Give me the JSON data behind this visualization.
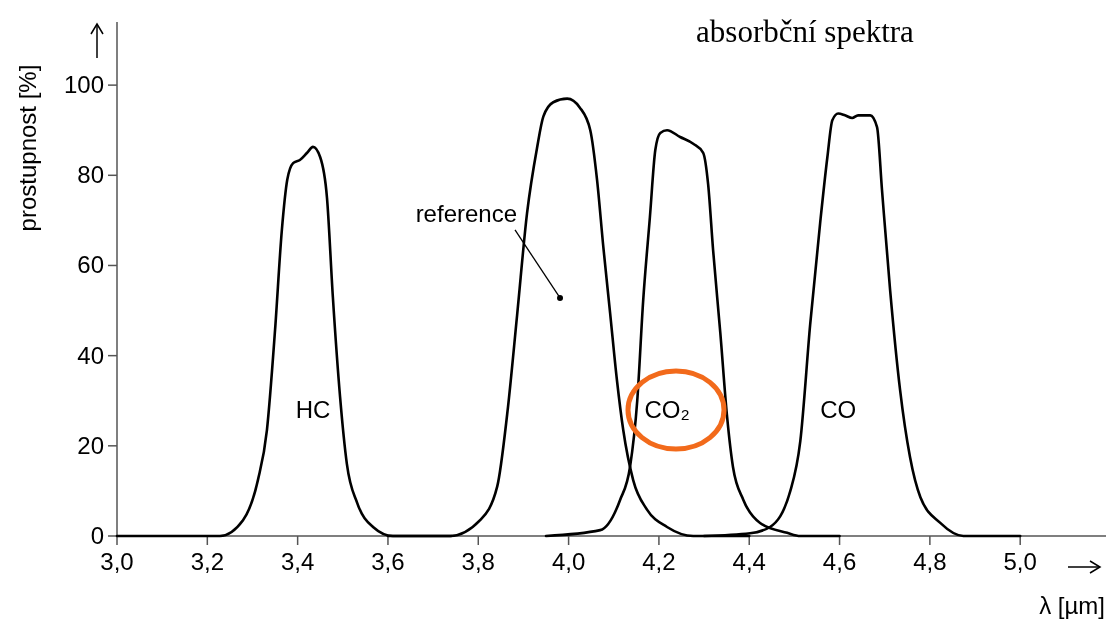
{
  "chart_data": {
    "type": "line",
    "title": "absorbční spektra",
    "xlabel": "λ [µm]",
    "ylabel": "prostupnost [%]",
    "xlim": [
      3,
      5.19
    ],
    "ylim": [
      0,
      114
    ],
    "xticks": [
      {
        "value": 3,
        "label": "3,0"
      },
      {
        "value": 3.2,
        "label": "3,2"
      },
      {
        "value": 3.4,
        "label": "3,4"
      },
      {
        "value": 3.6,
        "label": "3,6"
      },
      {
        "value": 3.8,
        "label": "3,8"
      },
      {
        "value": 4,
        "label": "4,0"
      },
      {
        "value": 4.2,
        "label": "4,2"
      },
      {
        "value": 4.4,
        "label": "4,4"
      },
      {
        "value": 4.6,
        "label": "4,6"
      },
      {
        "value": 4.8,
        "label": "4,8"
      },
      {
        "value": 5,
        "label": "5,0"
      }
    ],
    "yticks": [
      0,
      20,
      40,
      60,
      80,
      100
    ],
    "series": [
      {
        "name": "HC",
        "color": "#000000",
        "x": [
          3.0,
          3.228,
          3.279,
          3.312,
          3.332,
          3.35,
          3.365,
          3.377,
          3.39,
          3.405,
          3.421,
          3.434,
          3.45,
          3.465,
          3.478,
          3.494,
          3.509,
          3.532,
          3.567,
          3.611,
          3.74
        ],
        "values": [
          0,
          0,
          3.5,
          12.4,
          23.5,
          45.7,
          67.8,
          79,
          82.7,
          83.4,
          85,
          86.3,
          84,
          75,
          53,
          30.8,
          16,
          7.3,
          2,
          0,
          0
        ]
      },
      {
        "color": "#000000",
        "x": [
          3.6,
          3.738,
          3.804,
          3.842,
          3.864,
          3.886,
          3.908,
          3.93,
          3.944,
          3.966,
          3.997,
          4.025,
          4.048,
          4.063,
          4.077,
          4.092,
          4.107,
          4.121,
          4.143,
          4.174,
          4.218,
          4.276,
          4.4
        ],
        "values": [
          0,
          0,
          3.5,
          11,
          27,
          49,
          71.6,
          86,
          93,
          96.2,
          97,
          95,
          90,
          79,
          64,
          49.4,
          34.6,
          23.5,
          12.4,
          5.8,
          2,
          0,
          0
        ]
      },
      {
        "name": "CO₂",
        "color": "#000000",
        "x": [
          3.95,
          4.07,
          4.114,
          4.136,
          4.152,
          4.165,
          4.18,
          4.192,
          4.203,
          4.218,
          4.247,
          4.276,
          4.298,
          4.309,
          4.32,
          4.336,
          4.351,
          4.364,
          4.387,
          4.424,
          4.484,
          4.513,
          4.6
        ],
        "values": [
          0,
          1.3,
          8,
          15.3,
          30,
          52,
          70.7,
          85.6,
          89.4,
          90,
          88.5,
          87,
          85,
          78,
          63.4,
          45,
          26.4,
          15.3,
          8,
          2.9,
          0.7,
          0,
          0
        ]
      },
      {
        "name": "CO",
        "color": "#000000",
        "x": [
          4.3,
          4.402,
          4.446,
          4.491,
          4.513,
          4.535,
          4.557,
          4.573,
          4.584,
          4.597,
          4.612,
          4.628,
          4.641,
          4.668,
          4.683,
          4.694,
          4.712,
          4.734,
          4.756,
          4.779,
          4.823,
          4.874,
          5.0
        ],
        "values": [
          0,
          0.6,
          2,
          10,
          21,
          47,
          69.4,
          84,
          92.2,
          93.7,
          93.3,
          92.7,
          93.3,
          93.3,
          90.7,
          76.7,
          54.5,
          32.4,
          17.5,
          8.6,
          2.9,
          0,
          0
        ]
      }
    ],
    "annotations": [
      {
        "text": "reference",
        "x": 3.981,
        "y": 52.8
      }
    ]
  }
}
